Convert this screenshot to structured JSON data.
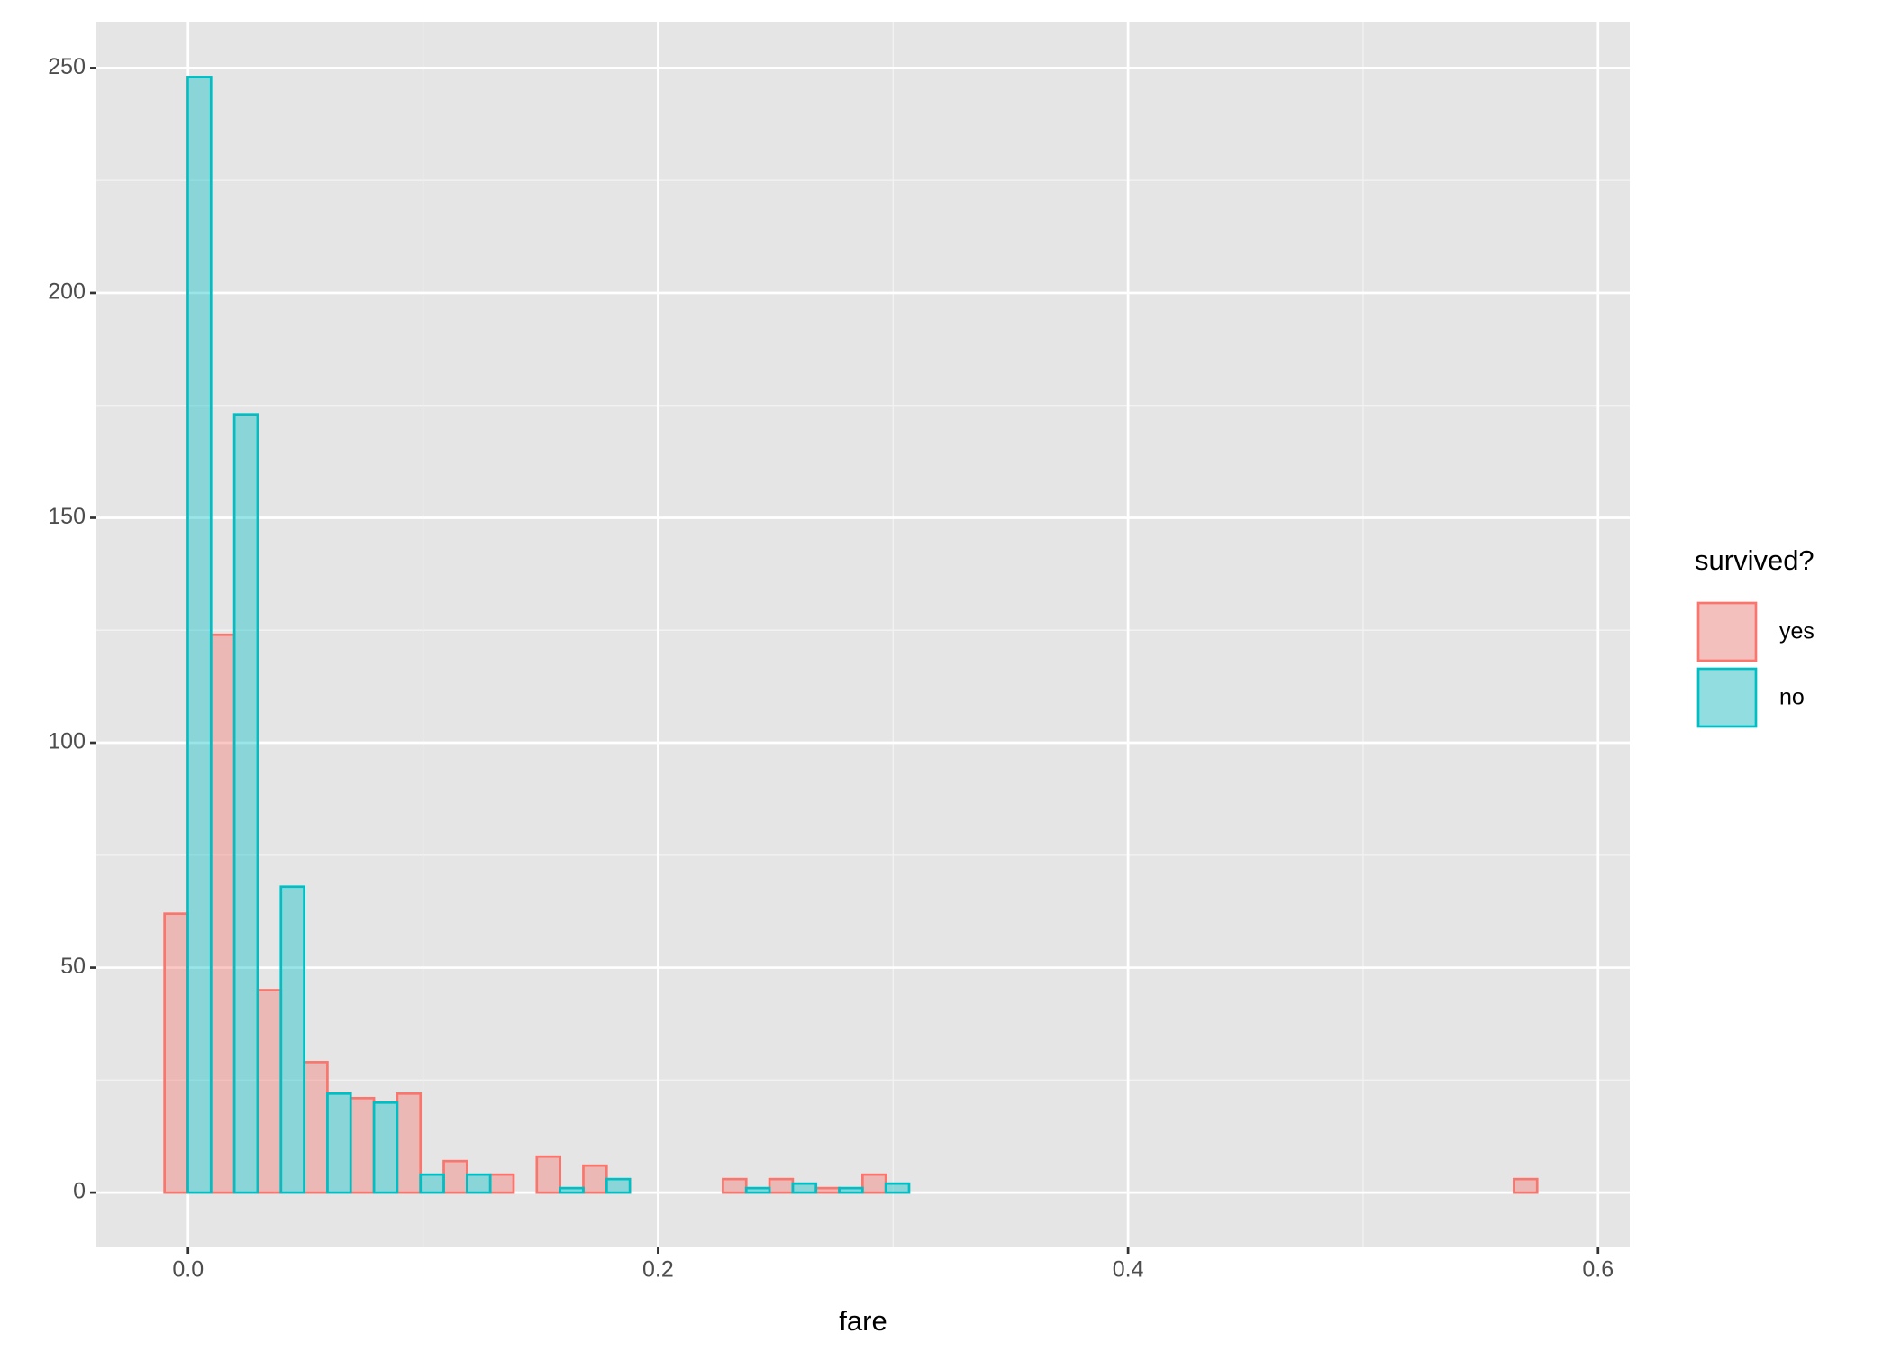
{
  "chart_data": {
    "type": "histogram",
    "xlabel": "fare",
    "legend_title": "survived?",
    "legend_position": "right",
    "grid": true,
    "bins": [
      -0.01,
      0.0098,
      0.0296,
      0.0494,
      0.0692,
      0.089,
      0.1088,
      0.1286,
      0.1484,
      0.1682,
      0.188,
      0.2078,
      0.2276,
      0.2474,
      0.2672,
      0.287,
      0.3068,
      0.3266,
      0.3464,
      0.3662,
      0.386,
      0.4058,
      0.4256,
      0.4454,
      0.4652,
      0.485,
      0.5048,
      0.5246,
      0.5444,
      0.5642,
      0.584
    ],
    "series": [
      {
        "name": "yes",
        "color": "#F8766D",
        "values": [
          62,
          124,
          45,
          29,
          21,
          22,
          7,
          4,
          8,
          6,
          0,
          0,
          3,
          3,
          1,
          4,
          0,
          0,
          0,
          0,
          0,
          0,
          0,
          0,
          0,
          0,
          0,
          0,
          0,
          3
        ]
      },
      {
        "name": "no",
        "color": "#00BFC4",
        "values": [
          248,
          173,
          68,
          22,
          20,
          4,
          4,
          0,
          1,
          3,
          0,
          0,
          1,
          2,
          1,
          2,
          0,
          0,
          0,
          0,
          0,
          0,
          0,
          0,
          0,
          0,
          0,
          0,
          0,
          0
        ]
      }
    ],
    "xlim": [
      -0.039,
      0.6135
    ],
    "xticks": [
      {
        "value": 0,
        "label": "0.0"
      },
      0.2,
      0.4,
      0.6
    ],
    "ylim": [
      -12.2,
      260.3
    ],
    "yticks": [
      0,
      50,
      100,
      150,
      200,
      250
    ]
  }
}
